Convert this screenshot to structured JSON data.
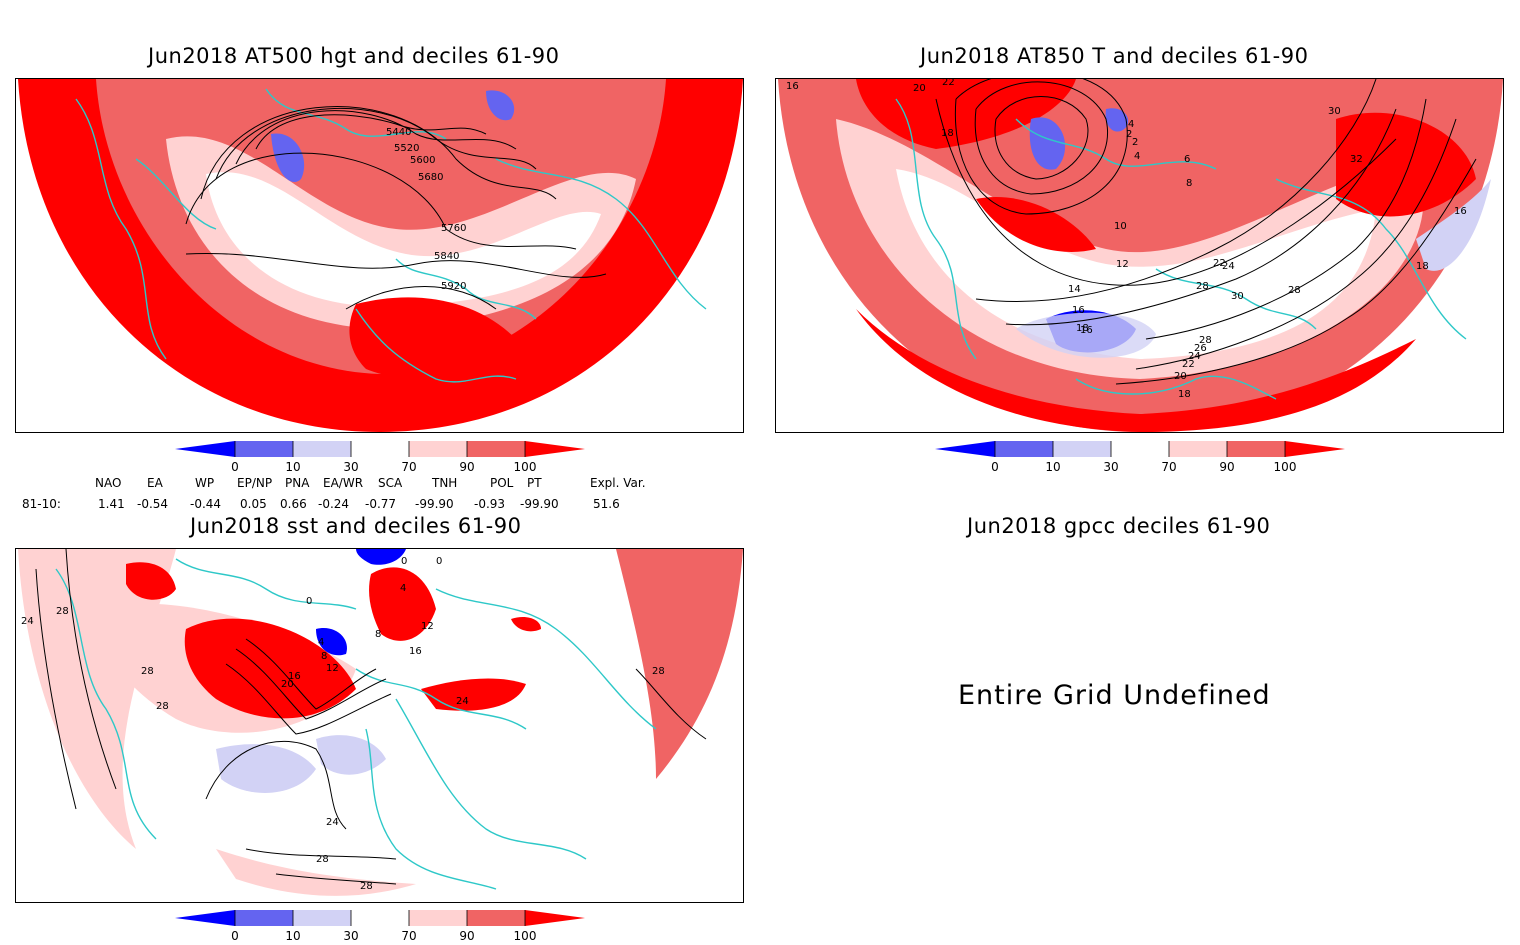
{
  "panels": {
    "top_left": {
      "title": "Jun2018 AT500 hgt and deciles 61-90",
      "contour_labels": [
        "5440",
        "5520",
        "5600",
        "5680",
        "5760",
        "5840",
        "5920"
      ]
    },
    "top_right": {
      "title": "Jun2018 AT850 T and deciles 61-90",
      "contour_labels": [
        "16",
        "20",
        "22",
        "18",
        "4",
        "2",
        "2",
        "4",
        "6",
        "8",
        "10",
        "12",
        "14",
        "16",
        "18",
        "22",
        "24",
        "28",
        "30",
        "32",
        "16",
        "18",
        "28",
        "30",
        "28",
        "26",
        "24",
        "22",
        "20",
        "18",
        "16"
      ]
    },
    "bottom_left": {
      "title": "Jun2018 sst and deciles 61-90",
      "contour_labels": [
        "24",
        "28",
        "28",
        "28",
        "24",
        "28",
        "28",
        "28",
        "4",
        "8",
        "12",
        "16",
        "20",
        "8",
        "0",
        "0",
        "0",
        "4",
        "16",
        "12",
        "24"
      ]
    },
    "bottom_right": {
      "title": "Jun2018 gpcc deciles 61-90",
      "message": "Entire Grid Undefined"
    }
  },
  "colorbar": {
    "ticks": [
      "0",
      "10",
      "30",
      "70",
      "90",
      "100"
    ],
    "colors": [
      "#0000ff",
      "#6464f0",
      "#d2d2f5",
      "#ffffff",
      "#ffd2d2",
      "#f06464",
      "#ff0000"
    ]
  },
  "indices": {
    "headers": [
      "NAO",
      "EA",
      "WP",
      "EP/NP",
      "PNA",
      "EA/WR",
      "SCA",
      "TNH",
      "POL",
      "PT",
      "Expl. Var."
    ],
    "row_label": "81-10:",
    "values": [
      "1.41",
      "-0.54",
      "-0.44",
      "0.05",
      "0.66",
      "-0.24",
      "-0.77",
      "-99.90",
      "-0.93",
      "-99.90",
      "51.6"
    ]
  }
}
